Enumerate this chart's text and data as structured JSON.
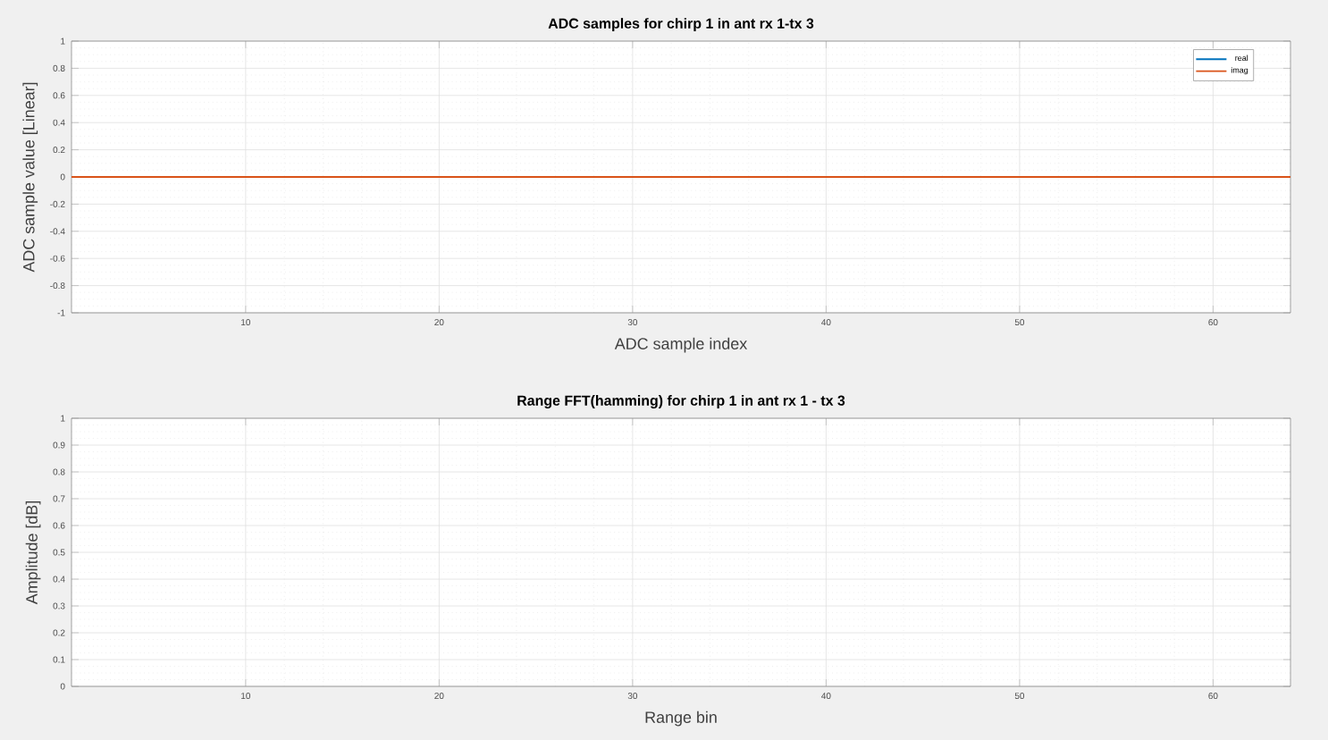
{
  "chart_data": [
    {
      "type": "line",
      "title": "ADC samples for chirp 1 in ant rx 1-tx 3",
      "xlabel": "ADC sample index",
      "ylabel": "ADC sample value [Linear]",
      "xlim": [
        1,
        64
      ],
      "ylim": [
        -1,
        1
      ],
      "xticks": [
        10,
        20,
        30,
        40,
        50,
        60
      ],
      "yticks": [
        -1,
        -0.8,
        -0.6,
        -0.4,
        -0.2,
        0,
        0.2,
        0.4,
        0.6,
        0.8,
        1
      ],
      "grid": true,
      "legend": "top right",
      "x": [
        1,
        64
      ],
      "series": [
        {
          "name": "real",
          "color": "#0072bd",
          "values": [
            null,
            null
          ]
        },
        {
          "name": "imag",
          "color": "#d95319",
          "values": [
            0,
            0
          ]
        }
      ]
    },
    {
      "type": "line",
      "title": "Range FFT(hamming) for chirp 1 in ant rx 1 - tx 3",
      "xlabel": "Range bin",
      "ylabel": "Amplitude [dB]",
      "xlim": [
        1,
        64
      ],
      "ylim": [
        0,
        1
      ],
      "xticks": [
        10,
        20,
        30,
        40,
        50,
        60
      ],
      "yticks": [
        0,
        0.1,
        0.2,
        0.3,
        0.4,
        0.5,
        0.6,
        0.7,
        0.8,
        0.9,
        1
      ],
      "grid": true
    }
  ]
}
